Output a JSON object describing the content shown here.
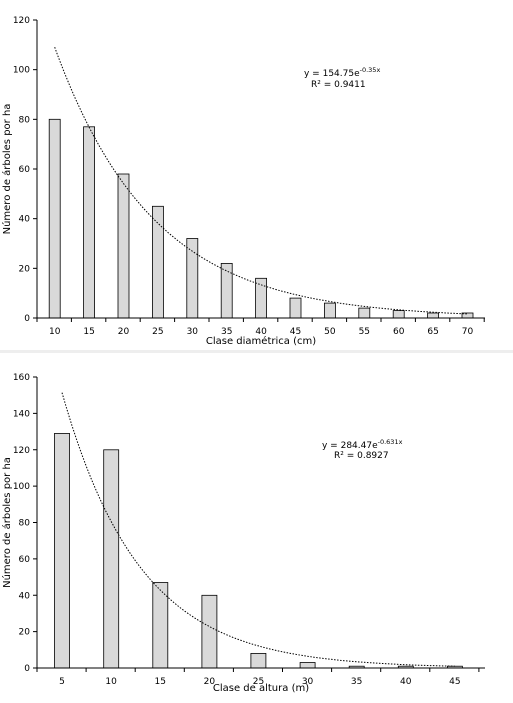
{
  "chart_data": [
    {
      "type": "bar",
      "categories": [
        "10",
        "15",
        "20",
        "25",
        "30",
        "35",
        "40",
        "45",
        "50",
        "55",
        "60",
        "65",
        "70"
      ],
      "values": [
        80,
        77,
        58,
        45,
        32,
        22,
        16,
        8,
        6,
        4,
        3,
        2,
        2
      ],
      "xlabel": "Clase diamétrica  (cm)",
      "ylabel": "Número de árboles por ha",
      "ylim": [
        0,
        120
      ],
      "yticks": [
        0,
        20,
        40,
        60,
        80,
        100,
        120
      ],
      "trendline": {
        "type": "exponential",
        "a": 154.75,
        "b": -0.35,
        "equation_prefix": "y = 154.75e",
        "equation_exponent": "-0.35x",
        "r2_text": "R² = 0.9411"
      },
      "colors": {
        "bar_fill": "#d9d9d9",
        "bar_stroke": "#000000",
        "trend": "#000000"
      },
      "grid": false
    },
    {
      "type": "bar",
      "categories": [
        "5",
        "10",
        "15",
        "20",
        "25",
        "30",
        "35",
        "40",
        "45"
      ],
      "values": [
        129,
        120,
        47,
        40,
        8,
        3,
        1,
        1,
        1
      ],
      "xlabel": "Clase de altura  (m)",
      "ylabel": "Número de árboles por ha",
      "ylim": [
        0,
        160
      ],
      "yticks": [
        0,
        20,
        40,
        60,
        80,
        100,
        120,
        140,
        160
      ],
      "trendline": {
        "type": "exponential",
        "a": 284.47,
        "b": -0.631,
        "equation_prefix": "y = 284.47e",
        "equation_exponent": "-0.631x",
        "r2_text": "R² = 0.8927"
      },
      "colors": {
        "bar_fill": "#d9d9d9",
        "bar_stroke": "#000000",
        "trend": "#000000"
      },
      "grid": false
    }
  ]
}
